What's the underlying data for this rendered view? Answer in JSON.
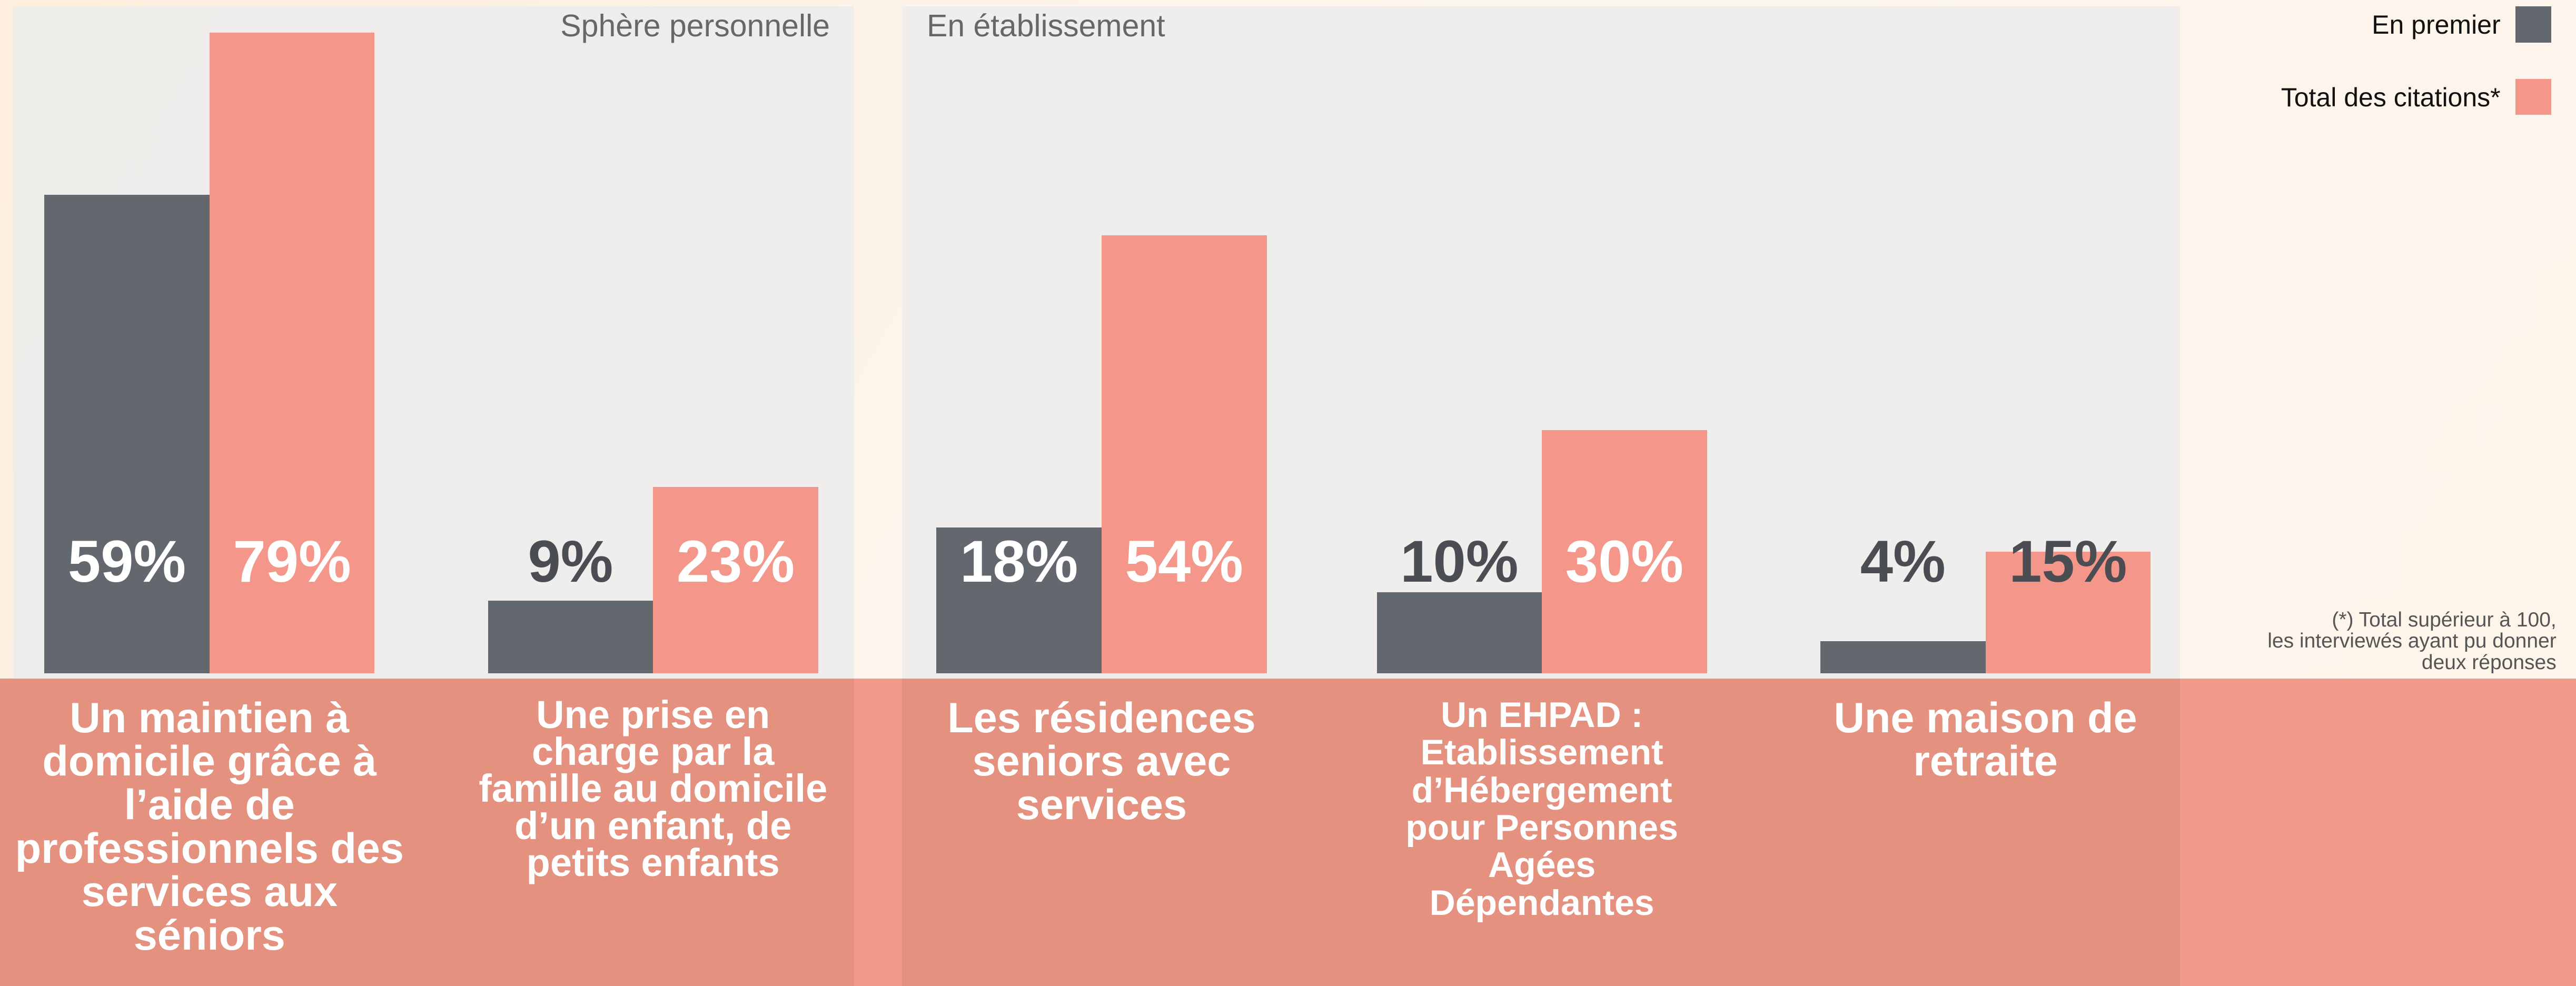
{
  "chart_data": {
    "type": "bar",
    "panels": [
      "Sphère personnelle",
      "En établissement"
    ],
    "categories": [
      "Un maintien à domicile grâce à l’aide de professionnels des services aux séniors",
      "Une prise en charge par la famille au domicile d’un enfant, de petits enfants",
      "Les résidences seniors avec services",
      "Un EHPAD : Etablissement d’Hébergement pour Personnes Agées Dépendantes",
      "Une maison de retraite"
    ],
    "series": [
      {
        "name": "En premier",
        "color": "#63676e",
        "values": [
          59,
          9,
          18,
          10,
          4
        ],
        "value_labels": [
          "59%",
          "9%",
          "18%",
          "10%",
          "4%"
        ]
      },
      {
        "name": "Total des citations*",
        "color": "#f4978a",
        "values": [
          79,
          23,
          54,
          30,
          15
        ],
        "value_labels": [
          "79%",
          "23%",
          "54%",
          "30%",
          "15%"
        ]
      }
    ],
    "legend": "top-right",
    "footnote": [
      "(*) Total supérieur à 100,",
      "les interviewés ayant pu donner",
      "deux réponses"
    ]
  }
}
